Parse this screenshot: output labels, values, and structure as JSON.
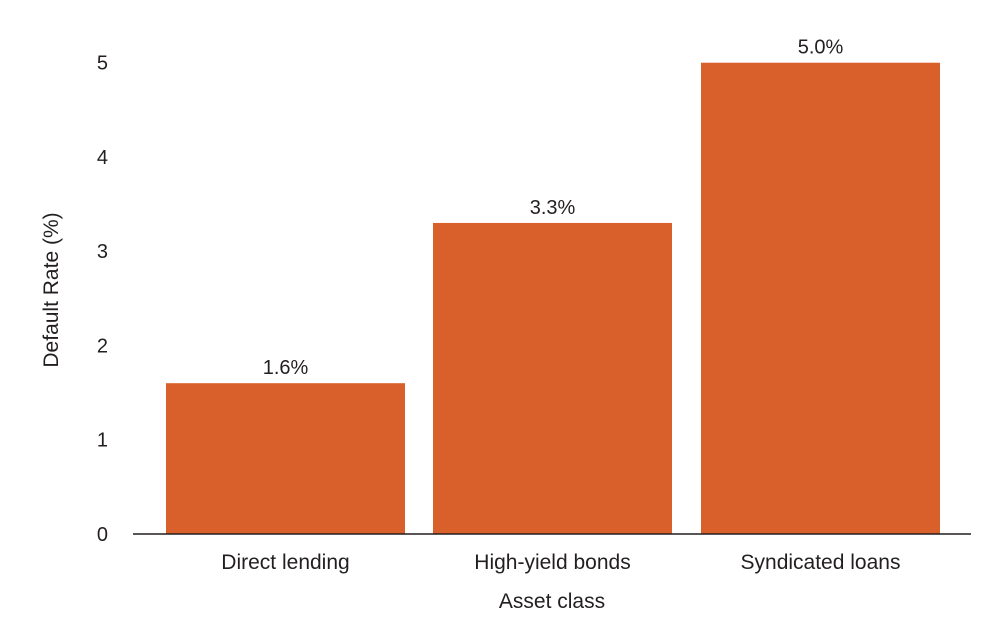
{
  "chart_data": {
    "type": "bar",
    "categories": [
      "Direct lending",
      "High-yield bonds",
      "Syndicated loans"
    ],
    "series": [
      {
        "values": [
          1.6,
          3.3,
          5.0
        ],
        "data_labels": [
          "1.6%",
          "3.3%",
          "5.0%"
        ],
        "color": "#d9602a"
      }
    ],
    "xlabel": "Asset class",
    "ylabel": "Default Rate (%)",
    "ylim": [
      0,
      5.05
    ],
    "yticks": [
      0,
      1,
      2,
      3,
      4,
      5
    ],
    "grid": false,
    "legend": "none"
  },
  "colors": {
    "bar": "#d9602a",
    "axis": "#231f20",
    "text": "#231f20",
    "background": "#ffffff"
  }
}
